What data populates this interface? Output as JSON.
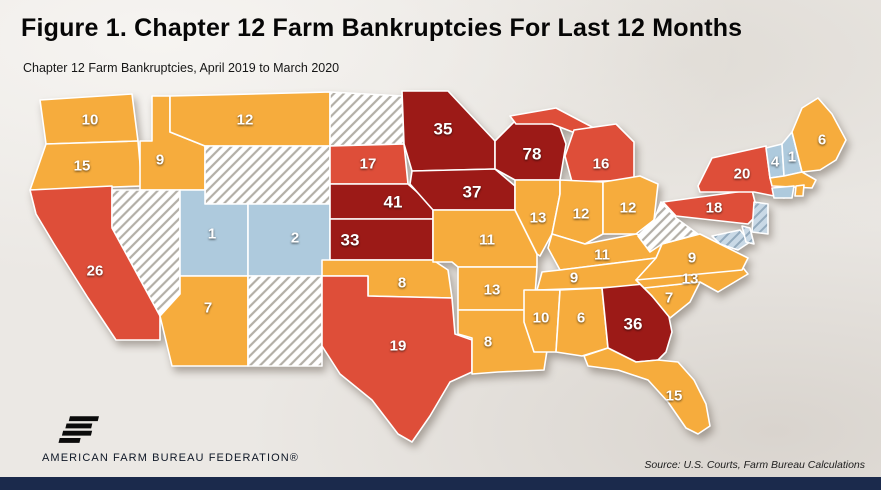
{
  "page": {
    "title": "Figure 1. Chapter 12 Farm Bankruptcies For Last 12 Months",
    "subtitle": "Chapter 12 Farm Bankruptcies, April 2019 to March 2020",
    "source_note": "Source: U.S. Courts, Farm Bureau Calculations",
    "logo_text": "AMERICAN FARM BUREAU FEDERATION®"
  },
  "palette": {
    "gold": "#F6AC3D",
    "red": "#DE4E39",
    "maroon": "#9C1A17",
    "blue": "#AECADD",
    "hatched_base": "#FFFFFF",
    "hatched_line": "#B3AFA7",
    "bluehatch_base": "#C9D9E6",
    "bluehatch_line": "#93ABBE",
    "state_border": "#FFFFFF",
    "footer_bar": "#1B2A4C",
    "background": "#EBE8E4"
  },
  "chart_data": {
    "type": "heatmap",
    "subtype": "us-state-choropleth",
    "title": "Figure 1. Chapter 12 Farm Bankruptcies For Last 12 Months",
    "subtitle": "Chapter 12 Farm Bankruptcies, April 2019 to March 2020",
    "period": "April 2019 to March 2020",
    "metric": "Chapter 12 farm bankruptcy filings, last 12 months",
    "source": "U.S. Courts, Farm Bureau Calculations",
    "color_encoding": {
      "blue": "used for shown values 1-4",
      "gold": "used for shown values 6-15",
      "red": "used for shown values 16-26",
      "maroon": "used for shown values 33-78",
      "hatched": "no value shown (white diagonal hatching)",
      "bluehatch": "no value shown (light blue hatching)"
    },
    "states": {
      "WA": {
        "value": 10,
        "category": "gold"
      },
      "OR": {
        "value": 15,
        "category": "gold"
      },
      "CA": {
        "value": 26,
        "category": "red"
      },
      "ID": {
        "value": 9,
        "category": "gold"
      },
      "NV": {
        "value": null,
        "category": "hatched"
      },
      "MT": {
        "value": 12,
        "category": "gold"
      },
      "WY": {
        "value": null,
        "category": "hatched"
      },
      "UT": {
        "value": 1,
        "category": "blue"
      },
      "CO": {
        "value": 2,
        "category": "blue"
      },
      "AZ": {
        "value": 7,
        "category": "gold"
      },
      "NM": {
        "value": null,
        "category": "hatched"
      },
      "ND": {
        "value": null,
        "category": "hatched"
      },
      "SD": {
        "value": 17,
        "category": "red"
      },
      "NE": {
        "value": 41,
        "category": "maroon"
      },
      "KS": {
        "value": 33,
        "category": "maroon"
      },
      "OK": {
        "value": 8,
        "category": "gold"
      },
      "TX": {
        "value": 19,
        "category": "red"
      },
      "MN": {
        "value": 35,
        "category": "maroon"
      },
      "IA": {
        "value": 37,
        "category": "maroon"
      },
      "MO": {
        "value": 11,
        "category": "gold"
      },
      "AR": {
        "value": 13,
        "category": "gold"
      },
      "LA": {
        "value": 8,
        "category": "gold"
      },
      "WI": {
        "value": 78,
        "category": "maroon"
      },
      "IL": {
        "value": 13,
        "category": "gold"
      },
      "MI": {
        "value": 16,
        "category": "red"
      },
      "IN": {
        "value": 12,
        "category": "gold"
      },
      "OH": {
        "value": 12,
        "category": "gold"
      },
      "KY": {
        "value": 11,
        "category": "gold"
      },
      "TN": {
        "value": 9,
        "category": "gold"
      },
      "MS": {
        "value": 10,
        "category": "gold"
      },
      "AL": {
        "value": 6,
        "category": "gold"
      },
      "GA": {
        "value": 36,
        "category": "maroon"
      },
      "FL": {
        "value": 15,
        "category": "gold"
      },
      "SC": {
        "value": 7,
        "category": "gold"
      },
      "NC": {
        "value": 13,
        "category": "gold"
      },
      "VA": {
        "value": 9,
        "category": "gold"
      },
      "WV": {
        "value": null,
        "category": "hatched"
      },
      "PA": {
        "value": 18,
        "category": "red"
      },
      "NY": {
        "value": 20,
        "category": "red"
      },
      "NJ": {
        "value": null,
        "category": "bluehatch"
      },
      "MD": {
        "value": null,
        "category": "bluehatch"
      },
      "DE": {
        "value": null,
        "category": "bluehatch"
      },
      "VT": {
        "value": 4,
        "category": "blue"
      },
      "NH": {
        "value": 1,
        "category": "blue"
      },
      "ME": {
        "value": 6,
        "category": "gold"
      },
      "MA": {
        "value": null,
        "category": "gold"
      },
      "CT": {
        "value": null,
        "category": "blue"
      },
      "RI": {
        "value": null,
        "category": "gold"
      }
    }
  }
}
